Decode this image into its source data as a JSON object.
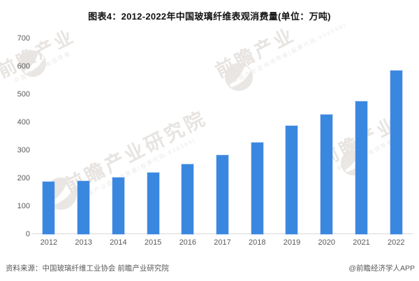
{
  "page": {
    "title": "图表4：2012-2022年中国玻璃纤维表观消费量(单位：万吨)"
  },
  "chart_data": {
    "type": "bar",
    "title": "图表4：2012-2022年中国玻璃纤维表观消费量(单位：万吨)",
    "unit": "万吨",
    "categories": [
      "2012",
      "2013",
      "2014",
      "2015",
      "2016",
      "2017",
      "2018",
      "2019",
      "2020",
      "2021",
      "2022"
    ],
    "values": [
      188,
      191,
      203,
      221,
      250,
      283,
      328,
      388,
      428,
      475,
      586
    ],
    "xlabel": "",
    "ylabel": "",
    "ylim": [
      0,
      700
    ],
    "yticks": [
      0,
      100,
      200,
      300,
      400,
      500,
      600,
      700
    ],
    "grid": false,
    "legend": "none",
    "bar_color": "#3a87e0"
  },
  "footer": {
    "source": "资料来源：中国玻璃纤维工业协会 前瞻产业研究院",
    "credit": "@前瞻经济学人APP"
  },
  "watermarks": [
    {
      "main": "前瞻产业",
      "sub": "中国产业咨询领导者"
    },
    {
      "main": "前瞻产业研究院",
      "sub": "中国产业咨询领导者(股票代码:839599)"
    },
    {
      "main": "前瞻产业",
      "sub": "中国产业咨询领导者(股票代码:839599)"
    },
    {
      "main": "前瞻产业",
      "sub": "中国产业咨询领导者"
    }
  ],
  "colors": {
    "bar": "#3a87e0",
    "axis_line": "#d9d9d9",
    "axis_text": "#595959",
    "watermark": "#e7e4e1"
  }
}
